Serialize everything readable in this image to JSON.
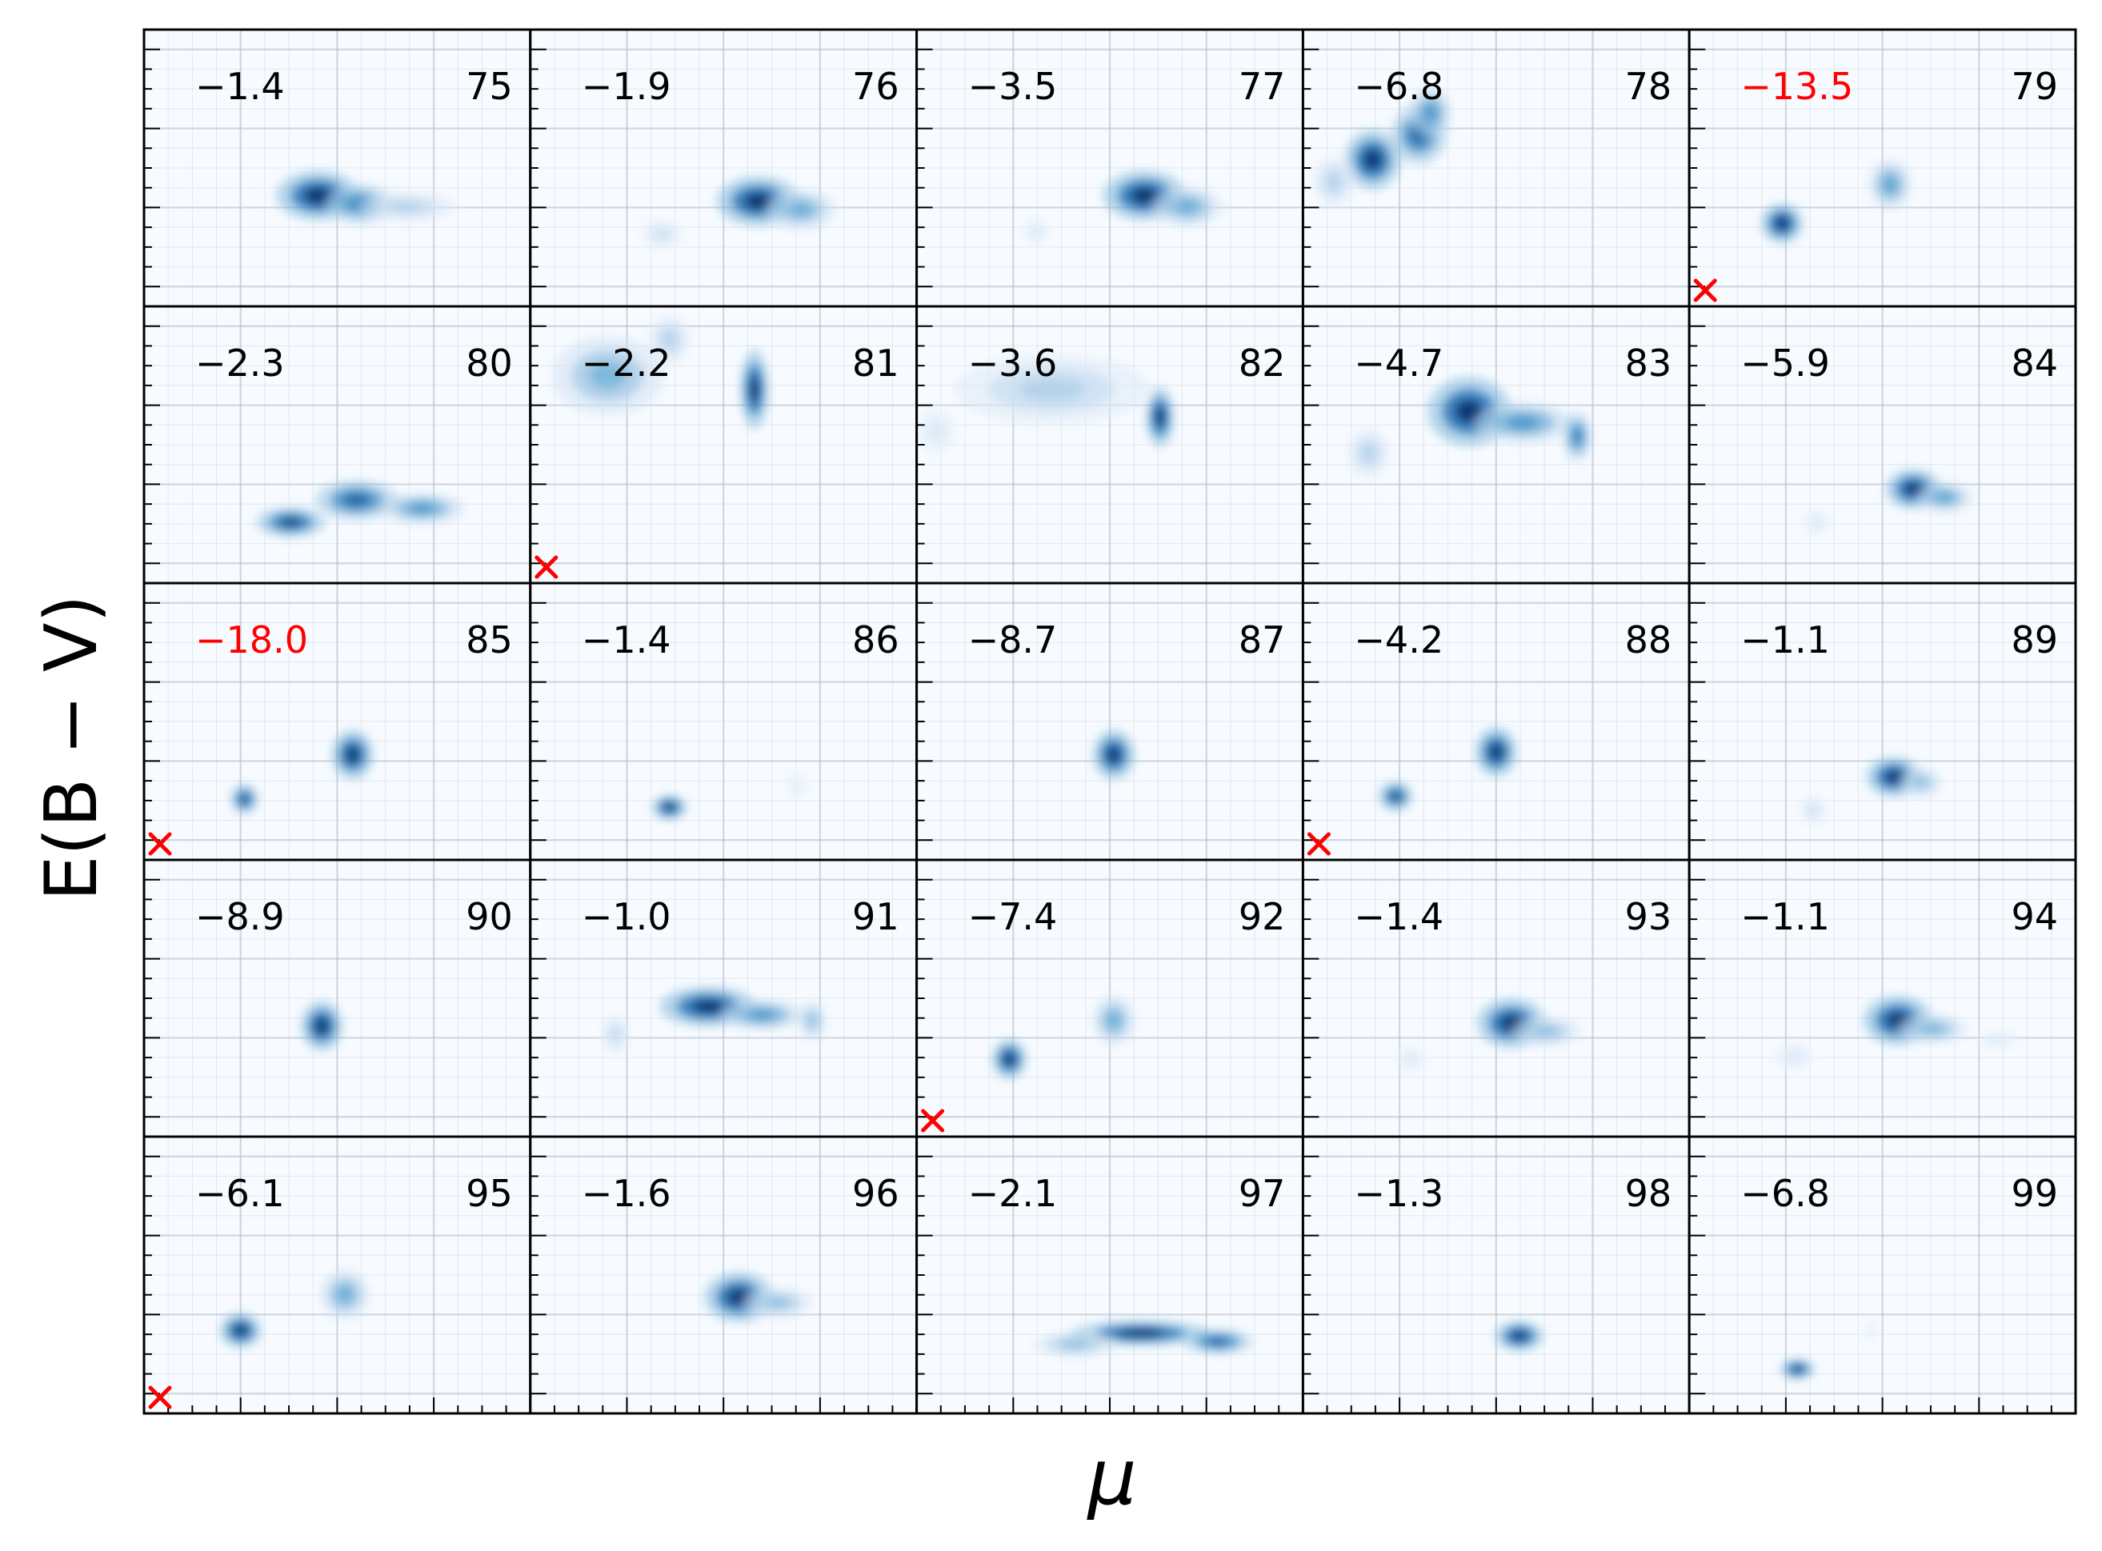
{
  "chart_data": {
    "type": "heatmap",
    "layout": "5x5 grid of density panels",
    "xlabel": "μ",
    "ylabel": "E(B − V)",
    "xticklabels": [],
    "yticklabels": [],
    "grid": true,
    "colormap": "Blues",
    "colors": {
      "frame": "#000000",
      "highlight": "#ff0000",
      "grid": "#b0b8c4",
      "background": "#f7fbff"
    },
    "x_range": [
      0,
      1
    ],
    "y_range": [
      0,
      1
    ],
    "panels": [
      {
        "id": "75",
        "value": "−1.4",
        "highlight": false,
        "marker": false,
        "blobs": [
          {
            "x": 0.45,
            "y": 0.4,
            "sx": 0.06,
            "sy": 0.05,
            "w": 1.0
          },
          {
            "x": 0.56,
            "y": 0.37,
            "sx": 0.05,
            "sy": 0.04,
            "w": 0.7
          },
          {
            "x": 0.68,
            "y": 0.36,
            "sx": 0.07,
            "sy": 0.03,
            "w": 0.3
          }
        ]
      },
      {
        "id": "76",
        "value": "−1.9",
        "highlight": false,
        "marker": false,
        "blobs": [
          {
            "x": 0.59,
            "y": 0.38,
            "sx": 0.06,
            "sy": 0.05,
            "w": 1.0
          },
          {
            "x": 0.7,
            "y": 0.35,
            "sx": 0.05,
            "sy": 0.04,
            "w": 0.5
          },
          {
            "x": 0.34,
            "y": 0.26,
            "sx": 0.03,
            "sy": 0.03,
            "w": 0.2
          }
        ]
      },
      {
        "id": "77",
        "value": "−3.5",
        "highlight": false,
        "marker": false,
        "blobs": [
          {
            "x": 0.59,
            "y": 0.4,
            "sx": 0.06,
            "sy": 0.05,
            "w": 1.0
          },
          {
            "x": 0.7,
            "y": 0.36,
            "sx": 0.05,
            "sy": 0.04,
            "w": 0.5
          },
          {
            "x": 0.31,
            "y": 0.27,
            "sx": 0.02,
            "sy": 0.03,
            "w": 0.15
          }
        ]
      },
      {
        "id": "78",
        "value": "−6.8",
        "highlight": false,
        "marker": false,
        "blobs": [
          {
            "x": 0.18,
            "y": 0.53,
            "sx": 0.04,
            "sy": 0.06,
            "w": 1.0
          },
          {
            "x": 0.3,
            "y": 0.62,
            "sx": 0.04,
            "sy": 0.06,
            "w": 0.8
          },
          {
            "x": 0.33,
            "y": 0.7,
            "sx": 0.03,
            "sy": 0.05,
            "w": 0.6
          },
          {
            "x": 0.08,
            "y": 0.45,
            "sx": 0.03,
            "sy": 0.05,
            "w": 0.3
          }
        ]
      },
      {
        "id": "79",
        "value": "−13.5",
        "highlight": true,
        "marker": true,
        "blobs": [
          {
            "x": 0.24,
            "y": 0.3,
            "sx": 0.03,
            "sy": 0.04,
            "w": 1.0
          },
          {
            "x": 0.52,
            "y": 0.44,
            "sx": 0.03,
            "sy": 0.05,
            "w": 0.55
          }
        ]
      },
      {
        "id": "80",
        "value": "−2.3",
        "highlight": false,
        "marker": false,
        "blobs": [
          {
            "x": 0.38,
            "y": 0.22,
            "sx": 0.05,
            "sy": 0.03,
            "w": 0.9
          },
          {
            "x": 0.55,
            "y": 0.3,
            "sx": 0.06,
            "sy": 0.04,
            "w": 0.8
          },
          {
            "x": 0.72,
            "y": 0.27,
            "sx": 0.06,
            "sy": 0.03,
            "w": 0.6
          }
        ]
      },
      {
        "id": "81",
        "value": "−2.2",
        "highlight": false,
        "marker": true,
        "blobs": [
          {
            "x": 0.58,
            "y": 0.7,
            "sx": 0.02,
            "sy": 0.08,
            "w": 1.0
          },
          {
            "x": 0.2,
            "y": 0.75,
            "sx": 0.08,
            "sy": 0.08,
            "w": 0.45
          },
          {
            "x": 0.36,
            "y": 0.88,
            "sx": 0.03,
            "sy": 0.05,
            "w": 0.3
          }
        ]
      },
      {
        "id": "82",
        "value": "−3.6",
        "highlight": false,
        "marker": false,
        "blobs": [
          {
            "x": 0.63,
            "y": 0.6,
            "sx": 0.02,
            "sy": 0.06,
            "w": 1.0
          },
          {
            "x": 0.35,
            "y": 0.7,
            "sx": 0.14,
            "sy": 0.07,
            "w": 0.3
          },
          {
            "x": 0.05,
            "y": 0.55,
            "sx": 0.03,
            "sy": 0.05,
            "w": 0.15
          }
        ]
      },
      {
        "id": "83",
        "value": "−4.7",
        "highlight": false,
        "marker": false,
        "blobs": [
          {
            "x": 0.43,
            "y": 0.62,
            "sx": 0.06,
            "sy": 0.07,
            "w": 1.0
          },
          {
            "x": 0.57,
            "y": 0.58,
            "sx": 0.07,
            "sy": 0.04,
            "w": 0.6
          },
          {
            "x": 0.71,
            "y": 0.53,
            "sx": 0.02,
            "sy": 0.05,
            "w": 0.7
          },
          {
            "x": 0.17,
            "y": 0.47,
            "sx": 0.03,
            "sy": 0.05,
            "w": 0.3
          }
        ]
      },
      {
        "id": "84",
        "value": "−5.9",
        "highlight": false,
        "marker": false,
        "blobs": [
          {
            "x": 0.58,
            "y": 0.34,
            "sx": 0.04,
            "sy": 0.04,
            "w": 1.0
          },
          {
            "x": 0.66,
            "y": 0.31,
            "sx": 0.04,
            "sy": 0.03,
            "w": 0.55
          },
          {
            "x": 0.33,
            "y": 0.22,
            "sx": 0.02,
            "sy": 0.03,
            "w": 0.15
          }
        ]
      },
      {
        "id": "85",
        "value": "−18.0",
        "highlight": true,
        "marker": true,
        "blobs": [
          {
            "x": 0.54,
            "y": 0.38,
            "sx": 0.03,
            "sy": 0.05,
            "w": 1.0
          },
          {
            "x": 0.26,
            "y": 0.22,
            "sx": 0.02,
            "sy": 0.03,
            "w": 0.9
          }
        ]
      },
      {
        "id": "86",
        "value": "−1.4",
        "highlight": false,
        "marker": false,
        "blobs": [
          {
            "x": 0.36,
            "y": 0.19,
            "sx": 0.025,
            "sy": 0.025,
            "w": 1.0
          },
          {
            "x": 0.69,
            "y": 0.27,
            "sx": 0.02,
            "sy": 0.03,
            "w": 0.1
          }
        ]
      },
      {
        "id": "87",
        "value": "−8.7",
        "highlight": false,
        "marker": false,
        "blobs": [
          {
            "x": 0.51,
            "y": 0.38,
            "sx": 0.03,
            "sy": 0.05,
            "w": 1.0
          }
        ]
      },
      {
        "id": "88",
        "value": "−4.2",
        "highlight": false,
        "marker": true,
        "blobs": [
          {
            "x": 0.5,
            "y": 0.39,
            "sx": 0.03,
            "sy": 0.05,
            "w": 1.0
          },
          {
            "x": 0.24,
            "y": 0.23,
            "sx": 0.025,
            "sy": 0.03,
            "w": 0.9
          }
        ]
      },
      {
        "id": "89",
        "value": "−1.1",
        "highlight": false,
        "marker": false,
        "blobs": [
          {
            "x": 0.53,
            "y": 0.3,
            "sx": 0.04,
            "sy": 0.04,
            "w": 1.0
          },
          {
            "x": 0.6,
            "y": 0.28,
            "sx": 0.03,
            "sy": 0.03,
            "w": 0.4
          },
          {
            "x": 0.32,
            "y": 0.18,
            "sx": 0.02,
            "sy": 0.03,
            "w": 0.2
          }
        ]
      },
      {
        "id": "90",
        "value": "−8.9",
        "highlight": false,
        "marker": false,
        "blobs": [
          {
            "x": 0.46,
            "y": 0.4,
            "sx": 0.03,
            "sy": 0.05,
            "w": 1.0
          }
        ]
      },
      {
        "id": "91",
        "value": "−1.0",
        "highlight": false,
        "marker": false,
        "blobs": [
          {
            "x": 0.46,
            "y": 0.47,
            "sx": 0.07,
            "sy": 0.04,
            "w": 1.0
          },
          {
            "x": 0.6,
            "y": 0.44,
            "sx": 0.06,
            "sy": 0.03,
            "w": 0.6
          },
          {
            "x": 0.73,
            "y": 0.42,
            "sx": 0.02,
            "sy": 0.04,
            "w": 0.4
          },
          {
            "x": 0.22,
            "y": 0.37,
            "sx": 0.02,
            "sy": 0.04,
            "w": 0.25
          }
        ]
      },
      {
        "id": "92",
        "value": "−7.4",
        "highlight": false,
        "marker": true,
        "blobs": [
          {
            "x": 0.24,
            "y": 0.28,
            "sx": 0.025,
            "sy": 0.04,
            "w": 1.0
          },
          {
            "x": 0.51,
            "y": 0.42,
            "sx": 0.03,
            "sy": 0.05,
            "w": 0.5
          }
        ]
      },
      {
        "id": "93",
        "value": "−1.4",
        "highlight": false,
        "marker": false,
        "blobs": [
          {
            "x": 0.54,
            "y": 0.41,
            "sx": 0.05,
            "sy": 0.05,
            "w": 1.0
          },
          {
            "x": 0.63,
            "y": 0.38,
            "sx": 0.05,
            "sy": 0.03,
            "w": 0.4
          },
          {
            "x": 0.28,
            "y": 0.28,
            "sx": 0.02,
            "sy": 0.03,
            "w": 0.15
          }
        ]
      },
      {
        "id": "94",
        "value": "−1.1",
        "highlight": false,
        "marker": false,
        "blobs": [
          {
            "x": 0.54,
            "y": 0.42,
            "sx": 0.05,
            "sy": 0.05,
            "w": 1.0
          },
          {
            "x": 0.63,
            "y": 0.39,
            "sx": 0.05,
            "sy": 0.03,
            "w": 0.45
          },
          {
            "x": 0.27,
            "y": 0.29,
            "sx": 0.03,
            "sy": 0.03,
            "w": 0.15
          },
          {
            "x": 0.8,
            "y": 0.35,
            "sx": 0.03,
            "sy": 0.02,
            "w": 0.15
          }
        ]
      },
      {
        "id": "95",
        "value": "−6.1",
        "highlight": false,
        "marker": true,
        "blobs": [
          {
            "x": 0.25,
            "y": 0.3,
            "sx": 0.03,
            "sy": 0.035,
            "w": 1.0
          },
          {
            "x": 0.52,
            "y": 0.43,
            "sx": 0.035,
            "sy": 0.05,
            "w": 0.5
          }
        ]
      },
      {
        "id": "96",
        "value": "−1.6",
        "highlight": false,
        "marker": false,
        "blobs": [
          {
            "x": 0.54,
            "y": 0.42,
            "sx": 0.05,
            "sy": 0.05,
            "w": 1.0
          },
          {
            "x": 0.64,
            "y": 0.4,
            "sx": 0.05,
            "sy": 0.03,
            "w": 0.4
          }
        ]
      },
      {
        "id": "97",
        "value": "−2.1",
        "highlight": false,
        "marker": false,
        "blobs": [
          {
            "x": 0.58,
            "y": 0.29,
            "sx": 0.1,
            "sy": 0.025,
            "w": 1.0
          },
          {
            "x": 0.78,
            "y": 0.26,
            "sx": 0.05,
            "sy": 0.025,
            "w": 0.8
          },
          {
            "x": 0.41,
            "y": 0.25,
            "sx": 0.06,
            "sy": 0.025,
            "w": 0.4
          }
        ]
      },
      {
        "id": "98",
        "value": "−1.3",
        "highlight": false,
        "marker": false,
        "blobs": [
          {
            "x": 0.56,
            "y": 0.28,
            "sx": 0.035,
            "sy": 0.03,
            "w": 1.0
          }
        ]
      },
      {
        "id": "99",
        "value": "−6.8",
        "highlight": false,
        "marker": false,
        "blobs": [
          {
            "x": 0.28,
            "y": 0.16,
            "sx": 0.025,
            "sy": 0.02,
            "w": 1.0
          },
          {
            "x": 0.47,
            "y": 0.3,
            "sx": 0.01,
            "sy": 0.03,
            "w": 0.1
          }
        ]
      }
    ]
  }
}
